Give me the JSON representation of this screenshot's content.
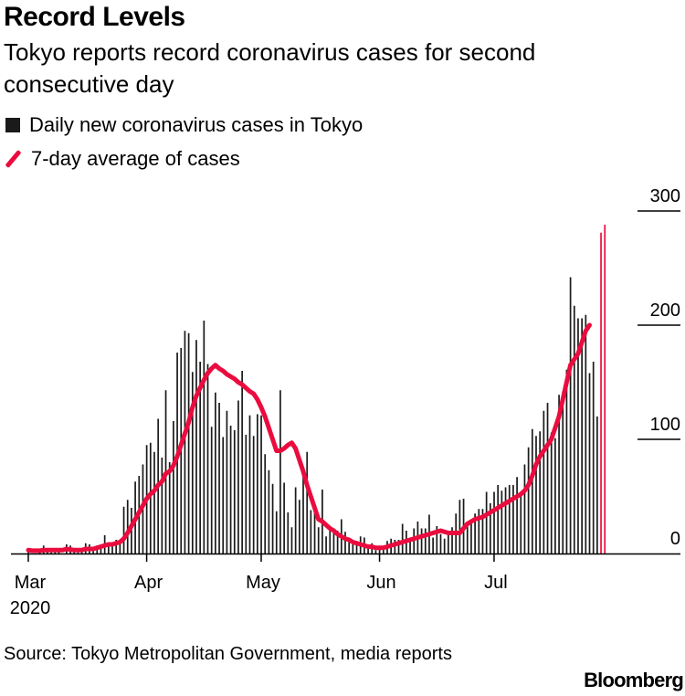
{
  "header": {
    "title": "Record Levels",
    "subtitle": "Tokyo reports record coronavirus cases for second consecutive day"
  },
  "legend": {
    "bars_label": "Daily new coronavirus cases in Tokyo",
    "line_label": "7-day average of cases"
  },
  "footer": {
    "source": "Source: Tokyo Metropolitan Government, media reports",
    "brand": "Bloomberg"
  },
  "colors": {
    "bar": "#1a1a1a",
    "accent": "#ea0c3e",
    "axis": "#000000"
  },
  "chart_data": {
    "type": "bar",
    "title": "Record Levels",
    "xlabel": "",
    "ylabel": "",
    "ylim": [
      0,
      300
    ],
    "y_ticks": [
      0,
      100,
      200,
      300
    ],
    "x_ticks": [
      {
        "label": "Mar",
        "day": 0,
        "year": "2020"
      },
      {
        "label": "Apr",
        "day": 31
      },
      {
        "label": "May",
        "day": 61
      },
      {
        "label": "Jun",
        "day": 92
      },
      {
        "label": "Jul",
        "day": 122
      }
    ],
    "start_date": "2020-03-01",
    "series": [
      {
        "name": "Daily new coronavirus cases in Tokyo",
        "kind": "bar",
        "highlight_last": 2,
        "values": [
          3,
          0,
          0,
          1,
          7,
          4,
          1,
          4,
          4,
          0,
          8,
          7,
          2,
          1,
          4,
          9,
          8,
          2,
          7,
          8,
          16,
          7,
          8,
          12,
          10,
          41,
          47,
          40,
          63,
          68,
          78,
          95,
          97,
          89,
          118,
          84,
          143,
          80,
          116,
          176,
          180,
          195,
          193,
          159,
          187,
          168,
          204,
          166,
          111,
          141,
          132,
          102,
          125,
          112,
          108,
          134,
          160,
          104,
          121,
          103,
          122,
          121,
          87,
          73,
          61,
          37,
          143,
          62,
          36,
          23,
          58,
          47,
          67,
          89,
          38,
          39,
          23,
          56,
          15,
          24,
          22,
          20,
          30,
          19,
          14,
          8,
          11,
          15,
          14,
          5,
          9,
          3,
          5,
          5,
          11,
          13,
          12,
          12,
          26,
          20,
          12,
          22,
          28,
          22,
          22,
          34,
          14,
          24,
          17,
          13,
          20,
          23,
          35,
          47,
          48,
          27,
          29,
          35,
          39,
          39,
          54,
          44,
          54,
          60,
          55,
          58,
          60,
          60,
          67,
          54,
          78,
          93,
          109,
          103,
          107,
          125,
          132,
          106,
          101,
          139,
          142,
          161,
          242,
          217,
          206,
          206,
          209,
          158,
          168,
          120,
          281,
          288
        ]
      },
      {
        "name": "7-day average of cases",
        "kind": "line",
        "values": [
          3,
          2.5,
          2.5,
          2.5,
          3,
          3,
          3,
          3,
          3,
          3,
          4,
          3.5,
          3,
          3,
          3,
          4,
          4,
          4,
          5,
          6,
          7,
          8,
          8,
          9,
          10,
          13,
          18,
          24,
          30,
          36,
          42,
          48,
          52,
          55,
          60,
          63,
          70,
          72,
          77,
          85,
          95,
          105,
          115,
          128,
          138,
          145,
          152,
          158,
          162,
          165,
          162,
          160,
          157,
          155,
          153,
          150,
          148,
          145,
          142,
          140,
          135,
          128,
          120,
          110,
          100,
          90,
          90,
          92,
          95,
          97,
          92,
          82,
          72,
          60,
          50,
          40,
          30,
          28,
          25,
          22,
          20,
          17,
          15,
          13,
          12,
          10,
          9,
          8,
          7,
          6,
          6,
          5,
          5,
          5,
          6,
          7,
          8,
          9,
          10,
          11,
          12,
          13,
          14,
          15,
          16,
          17,
          18,
          19,
          20,
          19,
          18,
          18,
          18,
          18,
          22,
          26,
          28,
          30,
          31,
          32,
          34,
          36,
          38,
          40,
          42,
          44,
          46,
          48,
          50,
          52,
          55,
          60,
          68,
          78,
          85,
          90,
          95,
          100,
          110,
          120,
          135,
          150,
          165,
          170,
          175,
          185,
          195,
          200
        ]
      }
    ]
  }
}
